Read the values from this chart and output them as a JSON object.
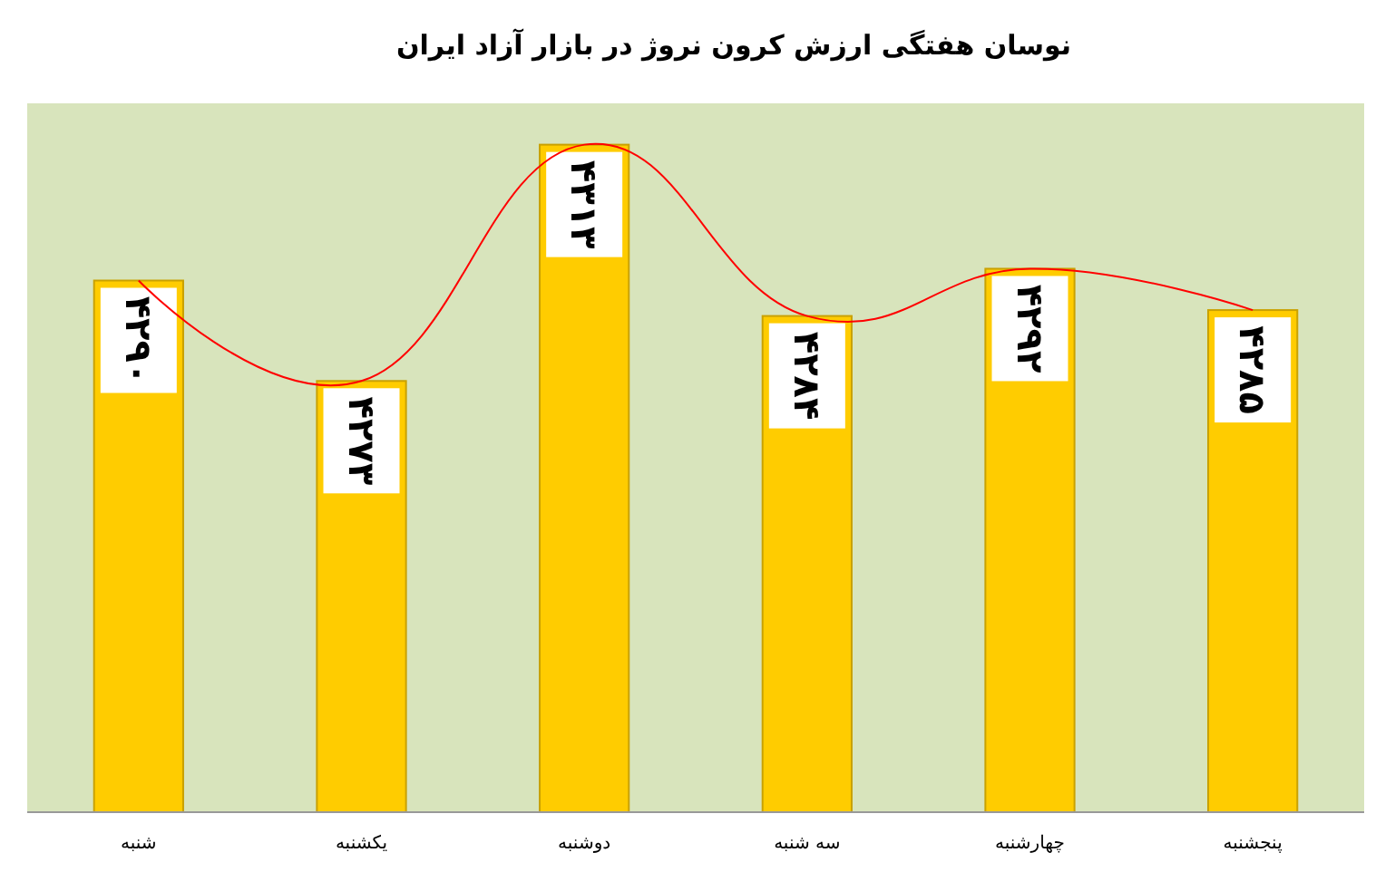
{
  "chart_data": {
    "type": "bar",
    "title": "نوسان هفتگی ارزش کرون نروژ در بازار آزاد ایران",
    "categories": [
      "شنبه",
      "یکشنبه",
      "دوشنبه",
      "سه شنبه",
      "چهارشنبه",
      "پنجشنبه"
    ],
    "ylim": [
      4200,
      4320
    ],
    "series": [
      {
        "color": "#ffcc00",
        "values": [
          4290,
          4273,
          4313,
          4284,
          4292,
          4285
        ],
        "value_labels": [
          "۴۲۹۰",
          "۴۲۷۳",
          "۴۳۱۳",
          "۴۲۸۴",
          "۴۲۹۲",
          "۴۲۸۵"
        ]
      },
      {
        "type": "line",
        "color": "#ff0000",
        "values": [
          4290,
          4273,
          4313,
          4284,
          4292,
          4285
        ]
      }
    ],
    "tick_labels": "x"
  }
}
